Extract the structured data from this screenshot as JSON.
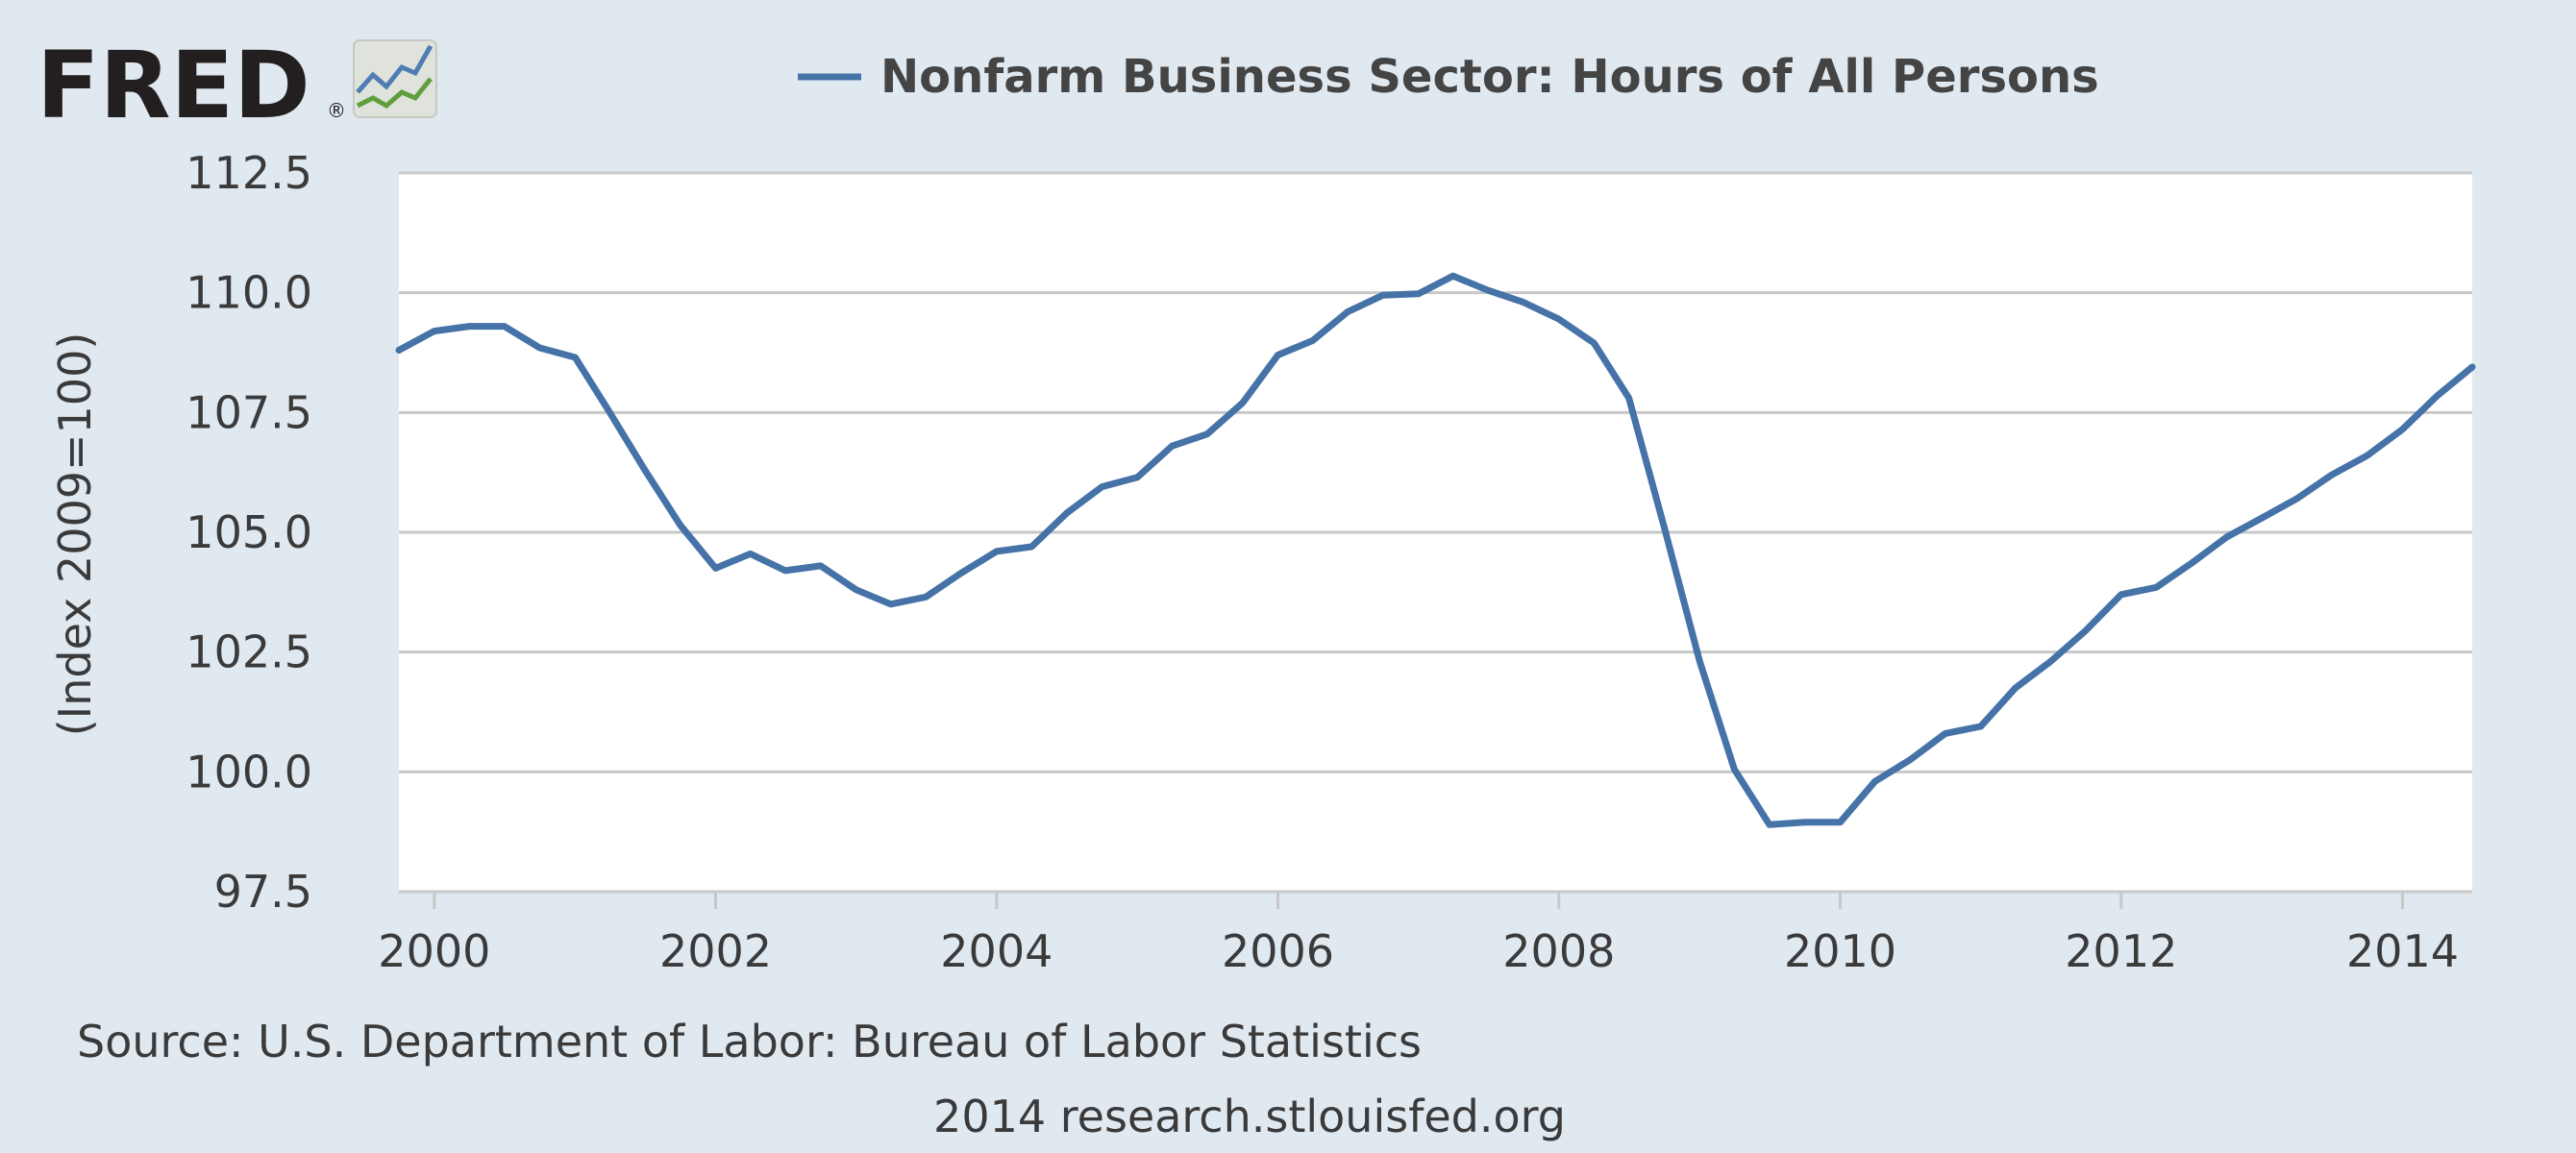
{
  "logo": {
    "text": "FRED",
    "registered": "®"
  },
  "legend": {
    "label": "Nonfarm Business Sector: Hours of All Persons"
  },
  "source": "Source: U.S. Department of Labor: Bureau of Labor Statistics",
  "credit": "2014 research.stlouisfed.org",
  "colors": {
    "background": "#e1e9f0",
    "plot_bg": "#ffffff",
    "grid": "#c8c8c8",
    "series": "#4572a7"
  },
  "chart_data": {
    "type": "line",
    "title": "",
    "xlabel": "",
    "ylabel": "(Index 2009=100)",
    "ylim": [
      97.5,
      112.5
    ],
    "xlim": [
      "1999-10-01",
      "2014-07-01"
    ],
    "grid": true,
    "legend_position": "top",
    "y_ticks": [
      "97.5",
      "100.0",
      "102.5",
      "105.0",
      "107.5",
      "110.0",
      "112.5"
    ],
    "x_ticks": [
      "2000",
      "2002",
      "2004",
      "2006",
      "2008",
      "2010",
      "2012",
      "2014"
    ],
    "series": [
      {
        "name": "Nonfarm Business Sector: Hours of All Persons",
        "x": [
          "1999-10-01",
          "2000-01-01",
          "2000-04-01",
          "2000-07-01",
          "2000-10-01",
          "2001-01-01",
          "2001-04-01",
          "2001-07-01",
          "2001-10-01",
          "2002-01-01",
          "2002-04-01",
          "2002-07-01",
          "2002-10-01",
          "2003-01-01",
          "2003-04-01",
          "2003-07-01",
          "2003-10-01",
          "2004-01-01",
          "2004-04-01",
          "2004-07-01",
          "2004-10-01",
          "2005-01-01",
          "2005-04-01",
          "2005-07-01",
          "2005-10-01",
          "2006-01-01",
          "2006-04-01",
          "2006-07-01",
          "2006-10-01",
          "2007-01-01",
          "2007-04-01",
          "2007-07-01",
          "2007-10-01",
          "2008-01-01",
          "2008-04-01",
          "2008-07-01",
          "2008-10-01",
          "2009-01-01",
          "2009-04-01",
          "2009-07-01",
          "2009-10-01",
          "2010-01-01",
          "2010-04-01",
          "2010-07-01",
          "2010-10-01",
          "2011-01-01",
          "2011-04-01",
          "2011-07-01",
          "2011-10-01",
          "2012-01-01",
          "2012-04-01",
          "2012-07-01",
          "2012-10-01",
          "2013-01-01",
          "2013-04-01",
          "2013-07-01",
          "2013-10-01",
          "2014-01-01",
          "2014-04-01",
          "2014-07-01"
        ],
        "values": [
          108.8,
          109.2,
          109.3,
          109.3,
          108.85,
          108.65,
          107.5,
          106.3,
          105.15,
          104.25,
          104.55,
          104.2,
          104.3,
          103.8,
          103.5,
          103.65,
          104.15,
          104.6,
          104.7,
          105.4,
          105.95,
          106.15,
          106.8,
          107.05,
          107.7,
          108.7,
          109.0,
          109.6,
          109.95,
          109.98,
          110.35,
          110.05,
          109.8,
          109.45,
          108.95,
          107.8,
          105.1,
          102.3,
          100.05,
          98.9,
          98.95,
          98.95,
          99.8,
          100.25,
          100.8,
          100.95,
          101.75,
          102.3,
          102.95,
          103.7,
          103.85,
          104.35,
          104.9,
          105.3,
          105.7,
          106.2,
          106.6,
          107.15,
          107.85,
          108.45
        ]
      }
    ]
  }
}
